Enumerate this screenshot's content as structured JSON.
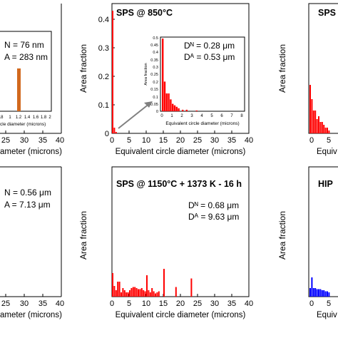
{
  "chart_data": [
    {
      "id": "top_left",
      "type": "bar",
      "title": "",
      "xlabel": "ameter (microns)",
      "ylabel": "",
      "xlim": [
        0,
        40
      ],
      "x_ticks": [
        "25",
        "30",
        "35",
        "40"
      ],
      "y_ticks": [],
      "color": "#d2691e",
      "annotations": [
        "N = 76 nm",
        "A = 283 nm"
      ],
      "inset": {
        "x_ticks": [
          ".8",
          "1",
          "1.2",
          "1.4",
          "1.6",
          "1.8",
          "2"
        ],
        "xlabel": "cle diameter (microns)",
        "bars": [
          {
            "x": 1.05,
            "y": 0.22
          }
        ]
      }
    },
    {
      "id": "top_middle",
      "type": "bar",
      "title": "SPS @ 850°C",
      "xlabel": "Equivalent circle diameter (microns)",
      "ylabel": "Area fraction",
      "xlim": [
        0,
        40
      ],
      "ylim": [
        0,
        0.45
      ],
      "x_ticks": [
        "0",
        "5",
        "10",
        "15",
        "20",
        "25",
        "30",
        "35",
        "40"
      ],
      "y_ticks": [
        "0",
        "0.1",
        "0.2",
        "0.3",
        "0.4"
      ],
      "color": "#ff0000",
      "bars": [
        {
          "x": 0.25,
          "y": 0.43
        },
        {
          "x": 0.75,
          "y": 0.02
        },
        {
          "x": 1.25,
          "y": 0.005
        }
      ],
      "inset": {
        "xlabel": "Equivalent circle diameter (microns)",
        "ylabel": "Area fraction",
        "xlim": [
          0,
          8
        ],
        "ylim": [
          0,
          0.5
        ],
        "x_ticks": [
          "0",
          "1",
          "2",
          "3",
          "4",
          "5",
          "6",
          "7",
          "8"
        ],
        "y_ticks": [
          "0",
          "0.05",
          "0.1",
          "0.15",
          "0.2",
          "0.25",
          "0.3",
          "0.35",
          "0.4",
          "0.45",
          "0.5"
        ],
        "bars": [
          {
            "x": 0.1,
            "y": 0.49
          },
          {
            "x": 0.3,
            "y": 0.2
          },
          {
            "x": 0.5,
            "y": 0.12
          },
          {
            "x": 0.7,
            "y": 0.12
          },
          {
            "x": 0.9,
            "y": 0.08
          },
          {
            "x": 1.1,
            "y": 0.05
          },
          {
            "x": 1.3,
            "y": 0.04
          },
          {
            "x": 1.5,
            "y": 0.03
          },
          {
            "x": 1.7,
            "y": 0.02
          },
          {
            "x": 2.1,
            "y": 0.01
          },
          {
            "x": 2.5,
            "y": 0.01
          },
          {
            "x": 3.5,
            "y": 0.005
          }
        ]
      },
      "annotations": [
        "Dᴺ = 0.28 μm",
        "Dᴬ = 0.53 μm"
      ]
    },
    {
      "id": "top_right",
      "type": "bar",
      "title": "SPS",
      "xlabel": "Equiv",
      "ylabel": "Area fraction",
      "x_ticks": [
        "0",
        "5"
      ],
      "color": "#ff0000",
      "bars": [
        {
          "x": 0.25,
          "y": 0.17
        },
        {
          "x": 0.75,
          "y": 0.12
        },
        {
          "x": 1.25,
          "y": 0.08
        },
        {
          "x": 1.75,
          "y": 0.08
        },
        {
          "x": 2.25,
          "y": 0.05
        },
        {
          "x": 2.75,
          "y": 0.06
        },
        {
          "x": 3.25,
          "y": 0.04
        },
        {
          "x": 3.75,
          "y": 0.04
        },
        {
          "x": 4.25,
          "y": 0.03
        },
        {
          "x": 4.75,
          "y": 0.02
        },
        {
          "x": 5.25,
          "y": 0.02
        },
        {
          "x": 5.75,
          "y": 0.01
        }
      ]
    },
    {
      "id": "bottom_left",
      "type": "bar",
      "title": "",
      "xlabel": "ameter (microns)",
      "ylabel": "",
      "x_ticks": [
        "25",
        "30",
        "35",
        "40"
      ],
      "annotations": [
        "N = 0.56 μm",
        "A = 7.13 μm"
      ]
    },
    {
      "id": "bottom_middle",
      "type": "bar",
      "title": "SPS @ 1150°C + 1373 K - 16 h",
      "xlabel": "Equivalent circle diameter (microns)",
      "ylabel": "Area fraction",
      "xlim": [
        0,
        40
      ],
      "x_ticks": [
        "0",
        "5",
        "10",
        "15",
        "20",
        "25",
        "30",
        "35",
        "40"
      ],
      "color": "#ff0000",
      "bars": [
        {
          "x": 0.25,
          "y": 0.11
        },
        {
          "x": 0.75,
          "y": 0.05
        },
        {
          "x": 1.25,
          "y": 0.03
        },
        {
          "x": 1.75,
          "y": 0.07
        },
        {
          "x": 2.25,
          "y": 0.07
        },
        {
          "x": 2.75,
          "y": 0.02
        },
        {
          "x": 3.25,
          "y": 0.04
        },
        {
          "x": 3.75,
          "y": 0.03
        },
        {
          "x": 4.25,
          "y": 0.02
        },
        {
          "x": 4.75,
          "y": 0.02
        },
        {
          "x": 5.25,
          "y": 0.03
        },
        {
          "x": 5.75,
          "y": 0.04
        },
        {
          "x": 6.25,
          "y": 0.045
        },
        {
          "x": 6.75,
          "y": 0.045
        },
        {
          "x": 7.25,
          "y": 0.04
        },
        {
          "x": 7.75,
          "y": 0.035
        },
        {
          "x": 8.25,
          "y": 0.035
        },
        {
          "x": 8.75,
          "y": 0.04
        },
        {
          "x": 9.25,
          "y": 0.03
        },
        {
          "x": 9.75,
          "y": 0.025
        },
        {
          "x": 10.25,
          "y": 0.1
        },
        {
          "x": 10.75,
          "y": 0.03
        },
        {
          "x": 11.25,
          "y": 0.02
        },
        {
          "x": 11.75,
          "y": 0.04
        },
        {
          "x": 12.25,
          "y": 0.025
        },
        {
          "x": 12.75,
          "y": 0.015
        },
        {
          "x": 13.25,
          "y": 0.02
        },
        {
          "x": 13.75,
          "y": 0.025
        },
        {
          "x": 15.25,
          "y": 0.13
        },
        {
          "x": 18.75,
          "y": 0.045
        },
        {
          "x": 23.25,
          "y": 0.085
        }
      ],
      "annotations": [
        "Dᴺ = 0.68 μm",
        "Dᴬ = 9.63 μm"
      ]
    },
    {
      "id": "bottom_right",
      "type": "bar",
      "title": "HIP",
      "xlabel": "Equiv",
      "ylabel": "Area fraction",
      "x_ticks": [
        "0",
        "5"
      ],
      "color": "#0000ff",
      "bars": [
        {
          "x": 0.25,
          "y": 0.04
        },
        {
          "x": 0.75,
          "y": 0.09
        },
        {
          "x": 1.25,
          "y": 0.04
        },
        {
          "x": 1.75,
          "y": 0.04
        },
        {
          "x": 2.25,
          "y": 0.035
        },
        {
          "x": 2.75,
          "y": 0.035
        },
        {
          "x": 3.25,
          "y": 0.035
        },
        {
          "x": 3.75,
          "y": 0.03
        },
        {
          "x": 4.25,
          "y": 0.03
        },
        {
          "x": 4.75,
          "y": 0.025
        },
        {
          "x": 5.25,
          "y": 0.025
        },
        {
          "x": 5.75,
          "y": 0.02
        }
      ]
    }
  ]
}
